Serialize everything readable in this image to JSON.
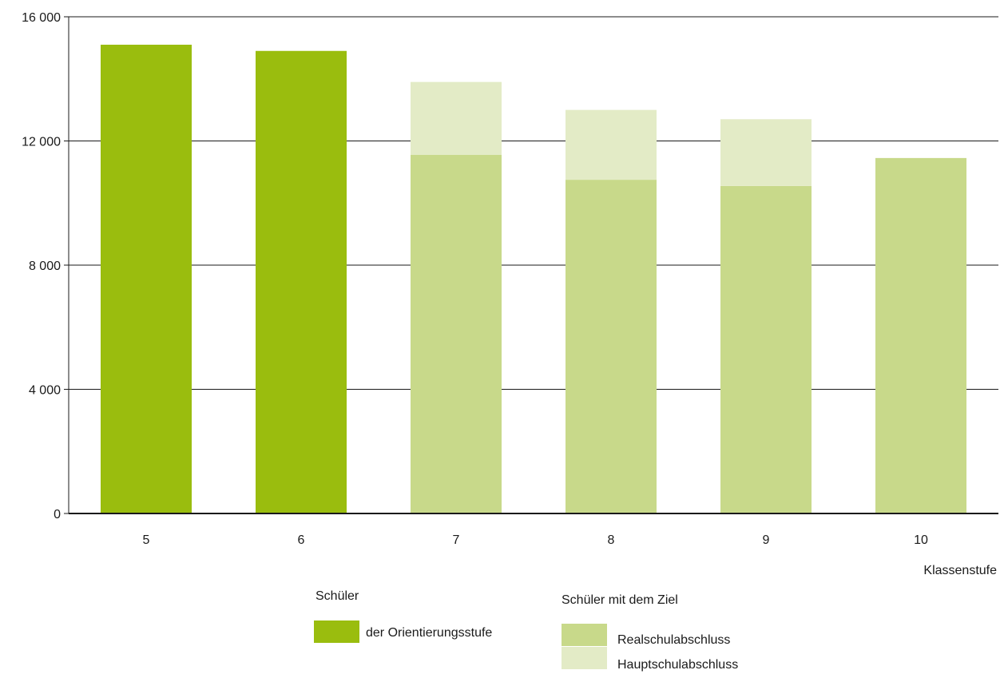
{
  "chart_data": {
    "type": "bar",
    "stacked": true,
    "categories": [
      "5",
      "6",
      "7",
      "8",
      "9",
      "10"
    ],
    "series": [
      {
        "key": "orientierung",
        "name": "der Orientierungsstufe",
        "color": "#9abd0e",
        "values": [
          15100,
          14900,
          0,
          0,
          0,
          0
        ]
      },
      {
        "key": "real",
        "name": "Realschulabschluss",
        "color": "#c8d98a",
        "values": [
          0,
          0,
          11550,
          10750,
          10550,
          11450
        ]
      },
      {
        "key": "haupt",
        "name": "Hauptschulabschluss",
        "color": "#e3ebc6",
        "values": [
          0,
          0,
          2350,
          2250,
          2150,
          0
        ]
      }
    ],
    "y_ticks": [
      {
        "value": 0,
        "label": "0"
      },
      {
        "value": 4000,
        "label": "4 000"
      },
      {
        "value": 8000,
        "label": "8 000"
      },
      {
        "value": 12000,
        "label": "12 000"
      },
      {
        "value": 16000,
        "label": "16 000"
      }
    ],
    "ylim": [
      0,
      16000
    ],
    "xlabel": "Klassenstufe",
    "ylabel": "",
    "grid": true,
    "legend": {
      "placement": "bottom",
      "groups": [
        {
          "heading": "Schüler",
          "series_keys": [
            "orientierung"
          ]
        },
        {
          "heading": "Schüler mit dem Ziel",
          "series_keys": [
            "real",
            "haupt"
          ]
        }
      ]
    }
  }
}
